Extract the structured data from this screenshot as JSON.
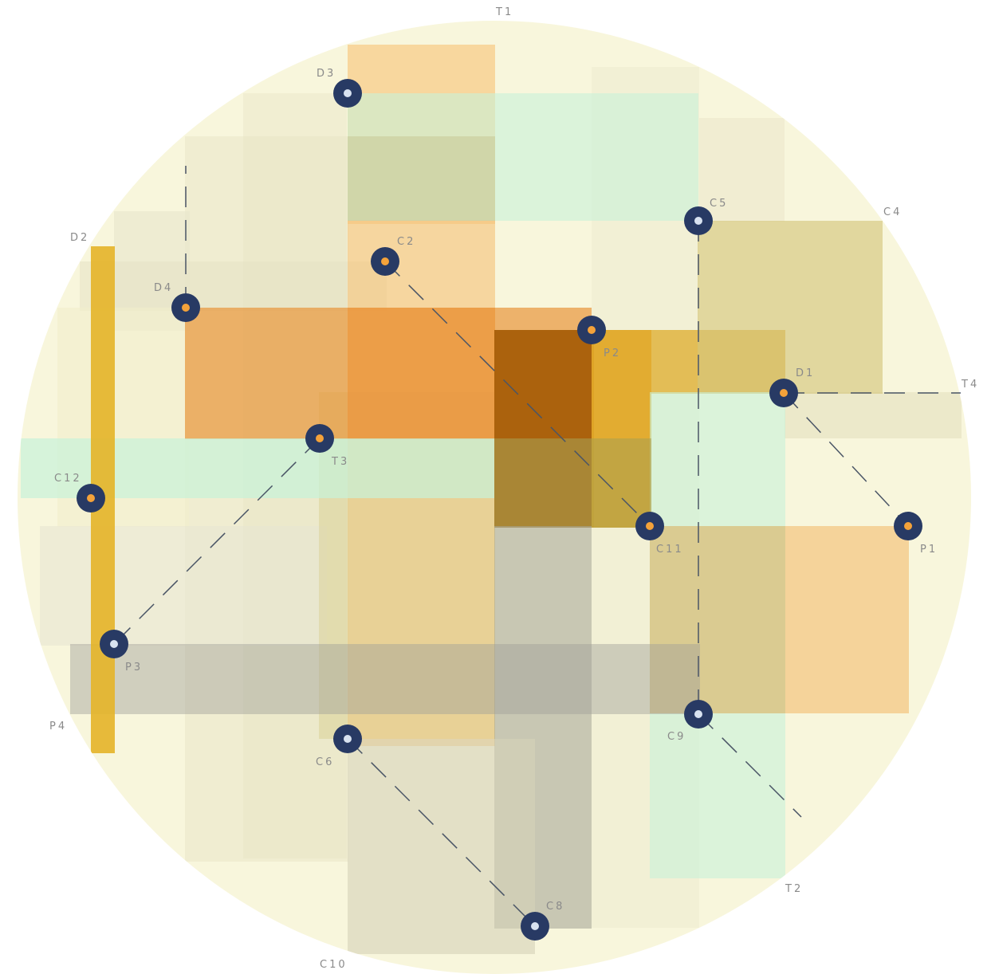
{
  "colors": {
    "disc": "#f8f6dc",
    "node_ring": "#283a64",
    "dot_orange": "#f4a23a",
    "dot_light": "#d8e2f0",
    "dash": "#4a5566",
    "label": "#8a8a8a"
  },
  "labels": {
    "T1": "T1",
    "T2": "T2",
    "T3": "T3",
    "T4": "T4",
    "D1": "D1",
    "D2": "D2",
    "D3": "D3",
    "D4": "D4",
    "P1": "P1",
    "P2": "P2",
    "P3": "P3",
    "P4": "P4",
    "C2": "C2",
    "C4": "C4",
    "C5": "C5",
    "C6": "C6",
    "C8": "C8",
    "C9": "C9",
    "C10": "C10",
    "C11": "C11",
    "C12": "C12"
  },
  "nodes": [
    {
      "id": "D3",
      "dot": "light"
    },
    {
      "id": "C5",
      "dot": "light"
    },
    {
      "id": "C2",
      "dot": "orange"
    },
    {
      "id": "D4",
      "dot": "orange"
    },
    {
      "id": "P2",
      "dot": "orange"
    },
    {
      "id": "D1",
      "dot": "orange"
    },
    {
      "id": "T3",
      "dot": "orange"
    },
    {
      "id": "C12",
      "dot": "orange"
    },
    {
      "id": "C11",
      "dot": "orange"
    },
    {
      "id": "P1",
      "dot": "orange"
    },
    {
      "id": "P3",
      "dot": "light"
    },
    {
      "id": "C9",
      "dot": "light"
    },
    {
      "id": "C6",
      "dot": "light"
    },
    {
      "id": "C8",
      "dot": "light"
    }
  ]
}
